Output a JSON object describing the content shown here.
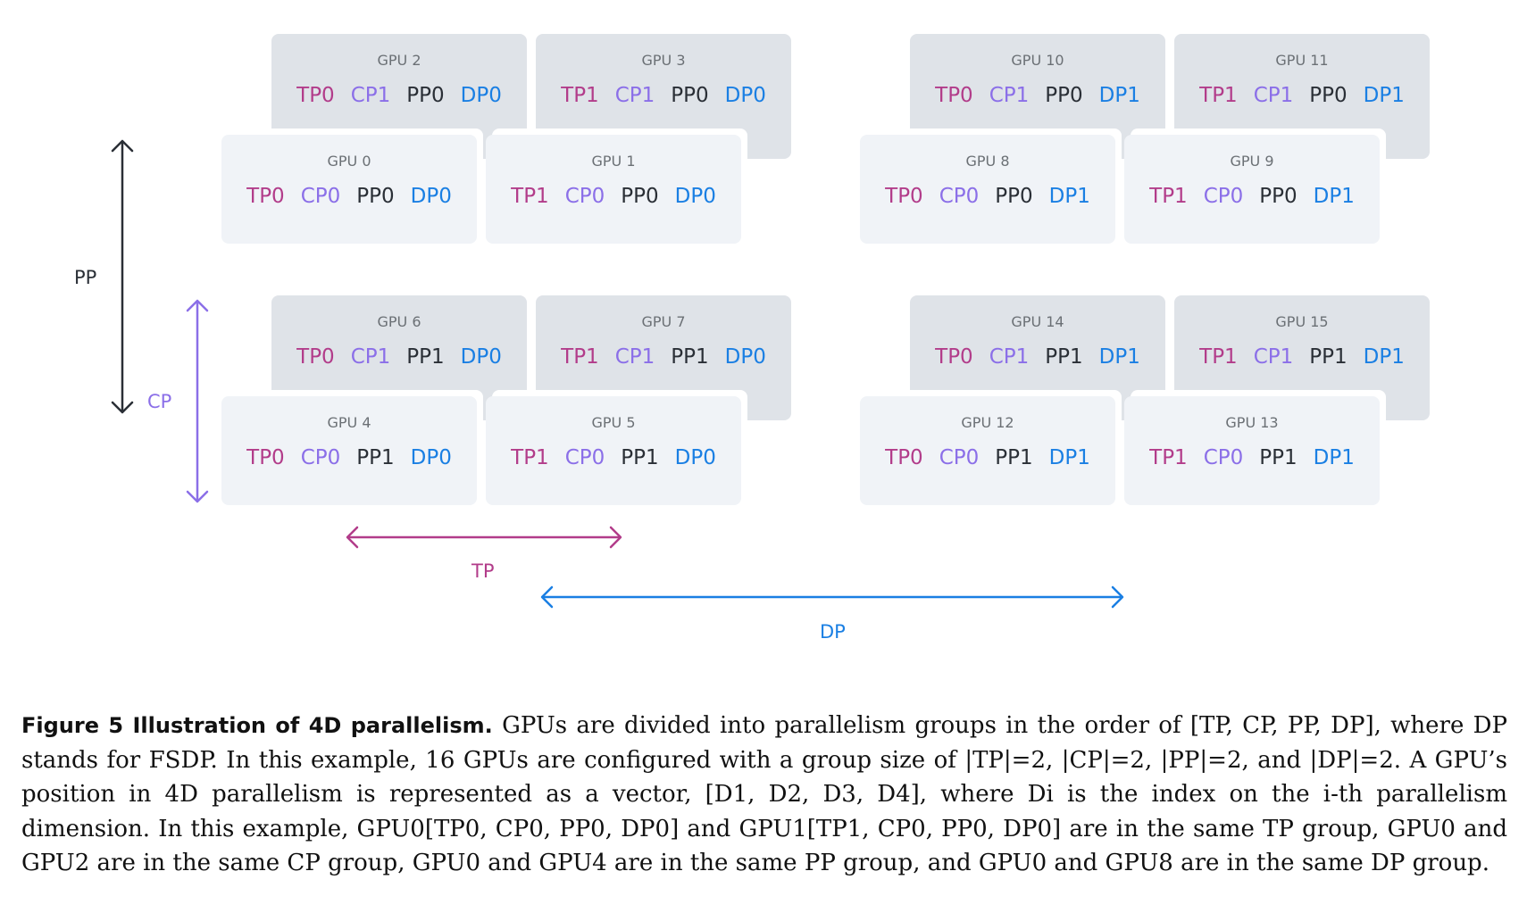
{
  "colors": {
    "tp": "#b23c8a",
    "cp": "#8b6fe8",
    "pp": "#2a2f36",
    "dp": "#1a7fe3"
  },
  "gpus": [
    {
      "title": "GPU 2",
      "tp": "TP0",
      "cp": "CP1",
      "pp": "PP0",
      "dp": "DP0"
    },
    {
      "title": "GPU 3",
      "tp": "TP1",
      "cp": "CP1",
      "pp": "PP0",
      "dp": "DP0"
    },
    {
      "title": "GPU 10",
      "tp": "TP0",
      "cp": "CP1",
      "pp": "PP0",
      "dp": "DP1"
    },
    {
      "title": "GPU 11",
      "tp": "TP1",
      "cp": "CP1",
      "pp": "PP0",
      "dp": "DP1"
    },
    {
      "title": "GPU 0",
      "tp": "TP0",
      "cp": "CP0",
      "pp": "PP0",
      "dp": "DP0"
    },
    {
      "title": "GPU 1",
      "tp": "TP1",
      "cp": "CP0",
      "pp": "PP0",
      "dp": "DP0"
    },
    {
      "title": "GPU 8",
      "tp": "TP0",
      "cp": "CP0",
      "pp": "PP0",
      "dp": "DP1"
    },
    {
      "title": "GPU 9",
      "tp": "TP1",
      "cp": "CP0",
      "pp": "PP0",
      "dp": "DP1"
    },
    {
      "title": "GPU 6",
      "tp": "TP0",
      "cp": "CP1",
      "pp": "PP1",
      "dp": "DP0"
    },
    {
      "title": "GPU 7",
      "tp": "TP1",
      "cp": "CP1",
      "pp": "PP1",
      "dp": "DP0"
    },
    {
      "title": "GPU 14",
      "tp": "TP0",
      "cp": "CP1",
      "pp": "PP1",
      "dp": "DP1"
    },
    {
      "title": "GPU 15",
      "tp": "TP1",
      "cp": "CP1",
      "pp": "PP1",
      "dp": "DP1"
    },
    {
      "title": "GPU 4",
      "tp": "TP0",
      "cp": "CP0",
      "pp": "PP1",
      "dp": "DP0"
    },
    {
      "title": "GPU 5",
      "tp": "TP1",
      "cp": "CP0",
      "pp": "PP1",
      "dp": "DP0"
    },
    {
      "title": "GPU 12",
      "tp": "TP0",
      "cp": "CP0",
      "pp": "PP1",
      "dp": "DP1"
    },
    {
      "title": "GPU 13",
      "tp": "TP1",
      "cp": "CP0",
      "pp": "PP1",
      "dp": "DP1"
    }
  ],
  "axes": {
    "pp": "PP",
    "cp": "CP",
    "tp": "TP",
    "dp": "DP"
  },
  "caption": {
    "lead": "Figure 5  Illustration of 4D parallelism.",
    "body": "GPUs are divided into parallelism groups in the order of [TP, CP, PP, DP], where DP stands for FSDP. In this example, 16 GPUs are configured with a group size of |TP|=2, |CP|=2, |PP|=2, and |DP|=2. A GPU’s position in 4D parallelism is represented as a vector, [D1, D2, D3, D4], where Di is the index on the i-th parallelism dimension. In this example, GPU0[TP0, CP0, PP0, DP0] and GPU1[TP1, CP0, PP0, DP0] are in the same TP group, GPU0 and GPU2 are in the same CP group, GPU0 and GPU4 are in the same PP group, and GPU0 and GPU8 are in the same DP group."
  }
}
